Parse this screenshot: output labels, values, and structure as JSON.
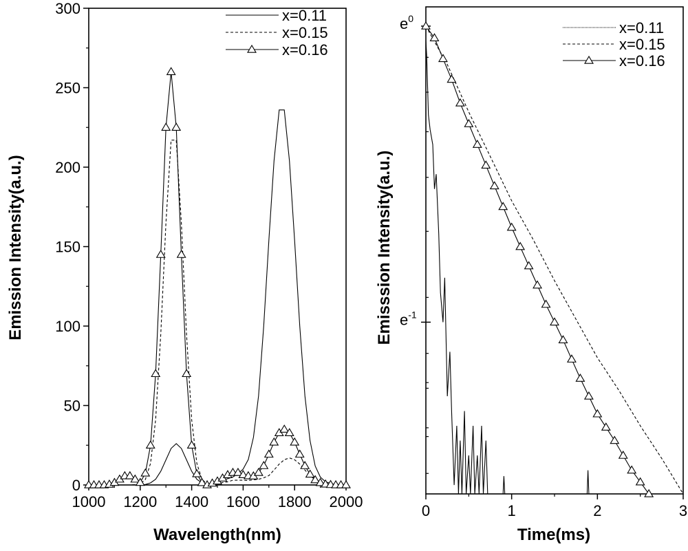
{
  "chart_data": [
    {
      "type": "line",
      "id": "left",
      "xlabel": "Wavelength(nm)",
      "ylabel": "Emission Intensity(a.u.)",
      "xlim": [
        1000,
        2000
      ],
      "ylim": [
        0,
        300
      ],
      "xticks": [
        1000,
        1200,
        1400,
        1600,
        1800,
        2000
      ],
      "xtick_labels": [
        "1000",
        "1200",
        "1400",
        "1600",
        "1800",
        "2000"
      ],
      "yticks": [
        0,
        50,
        100,
        150,
        200,
        250,
        300
      ],
      "ytick_labels": [
        "0",
        "50",
        "100",
        "150",
        "200",
        "250",
        "300"
      ],
      "legend_position": "top-right",
      "x": [
        1000,
        1020,
        1040,
        1060,
        1080,
        1100,
        1120,
        1140,
        1160,
        1180,
        1200,
        1220,
        1240,
        1260,
        1280,
        1300,
        1320,
        1340,
        1360,
        1380,
        1400,
        1420,
        1440,
        1460,
        1480,
        1500,
        1520,
        1540,
        1560,
        1580,
        1600,
        1620,
        1640,
        1660,
        1680,
        1700,
        1720,
        1740,
        1760,
        1780,
        1800,
        1820,
        1840,
        1860,
        1880,
        1900,
        1920,
        1940,
        1960,
        1980,
        2000
      ],
      "series": [
        {
          "name": "x=0.11",
          "style": "solid",
          "marker": "none",
          "values": [
            0,
            0,
            0,
            0,
            0,
            0,
            0,
            0,
            0,
            0,
            0,
            0.3,
            1.3,
            3.6,
            8.6,
            15.8,
            23,
            26,
            23,
            15.8,
            8.6,
            3.6,
            1.3,
            0.3,
            1,
            2,
            3,
            4,
            5,
            7,
            10,
            16,
            30,
            56,
            100,
            154,
            204,
            236,
            236,
            204,
            154,
            100,
            56,
            28,
            12,
            5,
            2,
            1,
            0,
            0,
            0
          ]
        },
        {
          "name": "x=0.15",
          "style": "dashed",
          "marker": "none",
          "values": [
            0,
            0,
            0,
            0,
            0,
            0,
            0,
            0,
            0,
            0.2,
            0.7,
            3.4,
            13.6,
            41,
            95,
            165,
            217,
            217,
            165,
            95,
            41,
            13.6,
            3.4,
            0.7,
            0.5,
            1,
            1.5,
            2,
            3,
            3,
            3,
            2.8,
            3.2,
            3.6,
            4.5,
            5.9,
            9.4,
            13.1,
            15.9,
            17,
            15.9,
            13.1,
            9.4,
            5.9,
            3.3,
            1.6,
            0.7,
            0.2,
            0,
            0,
            0
          ]
        },
        {
          "name": "x=0.16",
          "style": "solid",
          "marker": "triangle",
          "values": [
            0,
            0,
            0,
            0,
            0.4,
            1.5,
            3.6,
            5.7,
            5.7,
            3.6,
            1.5,
            7.4,
            25,
            70,
            145,
            225,
            260,
            225,
            145,
            70,
            25,
            7,
            1.4,
            0,
            1.1,
            2.4,
            4.3,
            6.4,
            7.8,
            7.8,
            6.4,
            5.7,
            5.6,
            7.8,
            12.1,
            19.3,
            26.9,
            32.8,
            35,
            32.8,
            26.9,
            19.3,
            12.1,
            6.7,
            3.2,
            1.4,
            0.5,
            0.2,
            0,
            0,
            0
          ]
        }
      ]
    },
    {
      "type": "line",
      "id": "right",
      "xlabel": "Time(ms)",
      "ylabel": "Emisssion Intensity(a.u.)",
      "yscale": "ln",
      "xlim": [
        0,
        3
      ],
      "ylim_ln": [
        -1.58,
        0.065
      ],
      "xticks": [
        0,
        1,
        2,
        3
      ],
      "xtick_labels": [
        "0",
        "1",
        "2",
        "3"
      ],
      "yticks_ln": [
        0,
        -1
      ],
      "ytick_labels": [
        {
          "base": "e",
          "exp": "0"
        },
        {
          "base": "e",
          "exp": "-1"
        }
      ],
      "legend_position": "top-right",
      "series": [
        {
          "name": "x=0.11",
          "style": "dotted-solid",
          "marker": "none",
          "x": [
            0,
            0.01,
            0.03,
            0.05,
            0.08,
            0.1,
            0.12,
            0.15,
            0.17,
            0.2,
            0.22,
            0.25,
            0.28,
            0.3,
            0.33,
            0.36,
            0.38,
            0.4,
            0.42,
            0.45,
            0.47,
            0.5,
            0.52,
            0.55,
            0.57,
            0.6,
            0.62,
            0.65,
            0.67,
            0.7,
            0.72,
            0.9,
            0.91,
            0.92,
            1.88,
            1.89,
            1.9,
            3.0
          ],
          "ln_values": [
            -0.05,
            -0.1,
            -0.3,
            -0.35,
            -0.4,
            -0.55,
            -0.5,
            -0.7,
            -0.9,
            -1.0,
            -0.85,
            -1.25,
            -1.1,
            -1.3,
            -1.55,
            -1.35,
            -1.58,
            -1.4,
            -1.58,
            -1.3,
            -1.58,
            -1.45,
            -1.58,
            -1.35,
            -1.58,
            -1.45,
            -1.58,
            -1.35,
            -1.58,
            -1.4,
            -1.58,
            -1.58,
            -1.52,
            -1.58,
            -1.58,
            -1.5,
            -1.58,
            -1.58
          ]
        },
        {
          "name": "x=0.15",
          "style": "dashed",
          "marker": "none",
          "x": [
            0,
            0.25,
            0.5,
            0.75,
            1,
            1.25,
            1.5,
            1.75,
            2,
            2.25,
            2.5,
            2.75,
            3.0
          ],
          "ln_values": [
            0,
            -0.13,
            -0.29,
            -0.44,
            -0.59,
            -0.72,
            -0.86,
            -0.99,
            -1.12,
            -1.23,
            -1.35,
            -1.46,
            -1.58
          ]
        },
        {
          "name": "x=0.16",
          "style": "solid",
          "marker": "triangle",
          "x": [
            0,
            0.1,
            0.2,
            0.3,
            0.4,
            0.5,
            0.6,
            0.7,
            0.8,
            0.9,
            1.0,
            1.1,
            1.2,
            1.3,
            1.4,
            1.5,
            1.6,
            1.7,
            1.8,
            1.9,
            2.0,
            2.1,
            2.2,
            2.3,
            2.4,
            2.5,
            2.6
          ],
          "ln_values": [
            0,
            -0.04,
            -0.11,
            -0.18,
            -0.26,
            -0.33,
            -0.4,
            -0.47,
            -0.54,
            -0.61,
            -0.68,
            -0.745,
            -0.81,
            -0.875,
            -0.94,
            -1.0,
            -1.06,
            -1.125,
            -1.19,
            -1.25,
            -1.31,
            -1.355,
            -1.4,
            -1.45,
            -1.5,
            -1.54,
            -1.58
          ]
        }
      ]
    }
  ]
}
